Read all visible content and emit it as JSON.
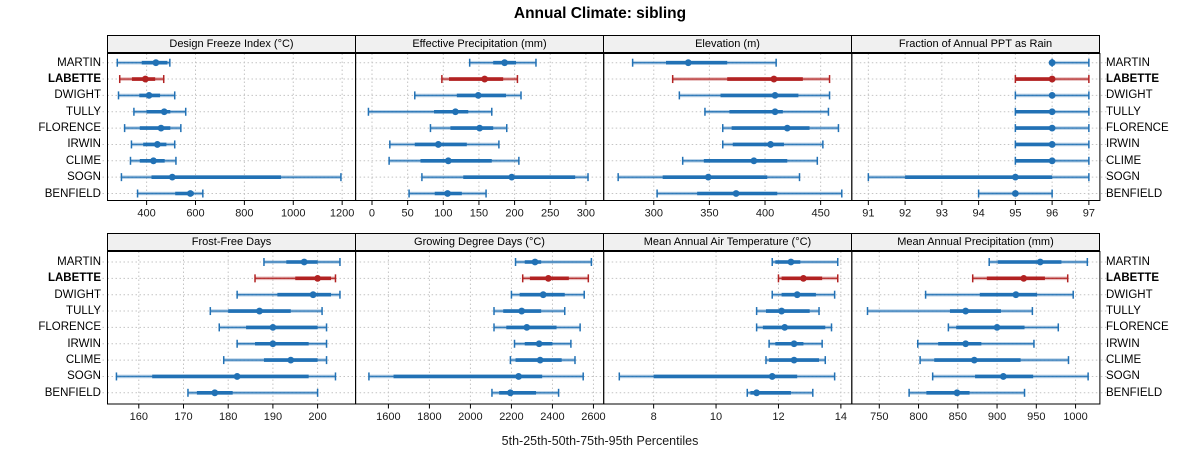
{
  "title": "Annual Climate: sibling",
  "caption": "5th-25th-50th-75th-95th Percentiles",
  "series_labels": [
    "MARTIN",
    "LABETTE",
    "DWIGHT",
    "TULLY",
    "FLORENCE",
    "IRWIN",
    "CLIME",
    "SOGN",
    "BENFIELD"
  ],
  "highlight_series": "LABETTE",
  "colors": {
    "normal": "#2171b5",
    "highlight": "#b22222",
    "gridline": "#c4c4c4",
    "panel_border": "#000000",
    "strip_bg": "#f0f0f0",
    "tick_label": "#1a1a1a"
  },
  "percentiles": [
    5,
    25,
    50,
    75,
    95
  ],
  "chart_data": [
    {
      "type": "dot-whisker",
      "title": "Design Freeze Index (°C)",
      "row": 0,
      "col": 0,
      "xlim": [
        240,
        1255
      ],
      "ticks": [
        400,
        600,
        800,
        1000,
        1200
      ],
      "series": [
        {
          "name": "MARTIN",
          "p": [
            280,
            380,
            438,
            485,
            495
          ]
        },
        {
          "name": "LABETTE",
          "p": [
            290,
            340,
            395,
            435,
            470
          ]
        },
        {
          "name": "DWIGHT",
          "p": [
            285,
            370,
            410,
            455,
            515
          ]
        },
        {
          "name": "TULLY",
          "p": [
            348,
            400,
            472,
            497,
            560
          ]
        },
        {
          "name": "FLORENCE",
          "p": [
            310,
            372,
            459,
            497,
            540
          ]
        },
        {
          "name": "IRWIN",
          "p": [
            338,
            386,
            444,
            481,
            515
          ]
        },
        {
          "name": "CLIME",
          "p": [
            334,
            372,
            428,
            474,
            520
          ]
        },
        {
          "name": "SOGN",
          "p": [
            297,
            420,
            505,
            950,
            1195
          ]
        },
        {
          "name": "BENFIELD",
          "p": [
            363,
            517,
            579,
            593,
            630
          ]
        }
      ]
    },
    {
      "type": "dot-whisker",
      "title": "Effective Precipitation (mm)",
      "row": 0,
      "col": 1,
      "xlim": [
        -23,
        325
      ],
      "ticks": [
        0,
        50,
        100,
        150,
        200,
        250,
        300
      ],
      "series": [
        {
          "name": "MARTIN",
          "p": [
            137,
            170,
            186,
            202,
            230
          ]
        },
        {
          "name": "LABETTE",
          "p": [
            98,
            108,
            158,
            184,
            204
          ]
        },
        {
          "name": "DWIGHT",
          "p": [
            60,
            119,
            149,
            188,
            209
          ]
        },
        {
          "name": "TULLY",
          "p": [
            -5,
            87,
            117,
            135,
            168
          ]
        },
        {
          "name": "FLORENCE",
          "p": [
            82,
            110,
            151,
            170,
            189
          ]
        },
        {
          "name": "IRWIN",
          "p": [
            25,
            60,
            93,
            133,
            178
          ]
        },
        {
          "name": "CLIME",
          "p": [
            24,
            68,
            107,
            168,
            206
          ]
        },
        {
          "name": "SOGN",
          "p": [
            70,
            128,
            196,
            285,
            303
          ]
        },
        {
          "name": "BENFIELD",
          "p": [
            52,
            88,
            106,
            126,
            160
          ]
        }
      ]
    },
    {
      "type": "dot-whisker",
      "title": "Elevation (m)",
      "row": 0,
      "col": 2,
      "xlim": [
        255,
        478
      ],
      "ticks": [
        300,
        350,
        400,
        450
      ],
      "series": [
        {
          "name": "MARTIN",
          "p": [
            281,
            311,
            331,
            366,
            410
          ]
        },
        {
          "name": "LABETTE",
          "p": [
            317,
            366,
            408,
            434,
            458
          ]
        },
        {
          "name": "DWIGHT",
          "p": [
            323,
            360,
            409,
            430,
            458
          ]
        },
        {
          "name": "TULLY",
          "p": [
            346,
            368,
            409,
            416,
            457
          ]
        },
        {
          "name": "FLORENCE",
          "p": [
            362,
            370,
            420,
            440,
            466
          ]
        },
        {
          "name": "IRWIN",
          "p": [
            362,
            371,
            405,
            417,
            452
          ]
        },
        {
          "name": "CLIME",
          "p": [
            326,
            345,
            390,
            420,
            447
          ]
        },
        {
          "name": "SOGN",
          "p": [
            268,
            308,
            349,
            402,
            431
          ]
        },
        {
          "name": "BENFIELD",
          "p": [
            303,
            339,
            374,
            411,
            469
          ]
        }
      ]
    },
    {
      "type": "dot-whisker",
      "title": "Fraction of Annual PPT as Rain",
      "row": 0,
      "col": 3,
      "xlim": [
        90.55,
        97.3
      ],
      "ticks": [
        91,
        92,
        93,
        94,
        95,
        96,
        97
      ],
      "series": [
        {
          "name": "MARTIN",
          "p": [
            96,
            96,
            96,
            96,
            97
          ]
        },
        {
          "name": "LABETTE",
          "p": [
            95,
            95,
            96,
            96,
            97
          ]
        },
        {
          "name": "DWIGHT",
          "p": [
            95,
            96,
            96,
            96,
            97
          ]
        },
        {
          "name": "TULLY",
          "p": [
            95,
            95,
            96,
            96,
            97
          ]
        },
        {
          "name": "FLORENCE",
          "p": [
            95,
            95,
            96,
            96,
            97
          ]
        },
        {
          "name": "IRWIN",
          "p": [
            95,
            95,
            96,
            96,
            97
          ]
        },
        {
          "name": "CLIME",
          "p": [
            95,
            95,
            96,
            96,
            97
          ]
        },
        {
          "name": "SOGN",
          "p": [
            91,
            92,
            95,
            96,
            97
          ]
        },
        {
          "name": "BENFIELD",
          "p": [
            94,
            95,
            95,
            95,
            96
          ]
        }
      ]
    },
    {
      "type": "dot-whisker",
      "title": "Frost-Free Days",
      "row": 1,
      "col": 0,
      "xlim": [
        153,
        208.5
      ],
      "ticks": [
        160,
        170,
        180,
        190,
        200
      ],
      "series": [
        {
          "name": "MARTIN",
          "p": [
            188,
            193,
            197,
            200,
            205
          ]
        },
        {
          "name": "LABETTE",
          "p": [
            186,
            195,
            200,
            203,
            204
          ]
        },
        {
          "name": "DWIGHT",
          "p": [
            182,
            191,
            199,
            203,
            205
          ]
        },
        {
          "name": "TULLY",
          "p": [
            176,
            180,
            187,
            194,
            201
          ]
        },
        {
          "name": "FLORENCE",
          "p": [
            178,
            184,
            190,
            200,
            202
          ]
        },
        {
          "name": "IRWIN",
          "p": [
            182,
            186,
            190,
            198,
            202
          ]
        },
        {
          "name": "CLIME",
          "p": [
            179,
            188,
            194,
            200,
            202
          ]
        },
        {
          "name": "SOGN",
          "p": [
            155,
            163,
            182,
            198,
            204
          ]
        },
        {
          "name": "BENFIELD",
          "p": [
            171,
            173,
            177,
            181,
            200
          ]
        }
      ]
    },
    {
      "type": "dot-whisker",
      "title": "Growing Degree Days (°C)",
      "row": 1,
      "col": 1,
      "xlim": [
        1440,
        2650
      ],
      "ticks": [
        1600,
        1800,
        2000,
        2200,
        2400,
        2600
      ],
      "series": [
        {
          "name": "MARTIN",
          "p": [
            2220,
            2265,
            2315,
            2345,
            2590
          ]
        },
        {
          "name": "LABETTE",
          "p": [
            2255,
            2290,
            2380,
            2480,
            2575
          ]
        },
        {
          "name": "DWIGHT",
          "p": [
            2200,
            2240,
            2355,
            2460,
            2555
          ]
        },
        {
          "name": "TULLY",
          "p": [
            2115,
            2160,
            2250,
            2345,
            2460
          ]
        },
        {
          "name": "FLORENCE",
          "p": [
            2115,
            2175,
            2275,
            2420,
            2535
          ]
        },
        {
          "name": "IRWIN",
          "p": [
            2215,
            2265,
            2335,
            2400,
            2490
          ]
        },
        {
          "name": "CLIME",
          "p": [
            2195,
            2220,
            2340,
            2445,
            2510
          ]
        },
        {
          "name": "SOGN",
          "p": [
            1505,
            1625,
            2235,
            2350,
            2550
          ]
        },
        {
          "name": "BENFIELD",
          "p": [
            2105,
            2140,
            2195,
            2320,
            2430
          ]
        }
      ]
    },
    {
      "type": "dot-whisker",
      "title": "Mean Annual Air Temperature (°C)",
      "row": 1,
      "col": 2,
      "xlim": [
        6.4,
        14.35
      ],
      "ticks": [
        8,
        10,
        12,
        14
      ],
      "series": [
        {
          "name": "MARTIN",
          "p": [
            11.8,
            11.9,
            12.4,
            12.7,
            13.9
          ]
        },
        {
          "name": "LABETTE",
          "p": [
            12.0,
            12.1,
            12.8,
            13.4,
            13.9
          ]
        },
        {
          "name": "DWIGHT",
          "p": [
            11.8,
            12.1,
            12.6,
            13.2,
            13.8
          ]
        },
        {
          "name": "TULLY",
          "p": [
            11.3,
            11.6,
            12.1,
            13.0,
            13.3
          ]
        },
        {
          "name": "FLORENCE",
          "p": [
            11.3,
            11.5,
            12.2,
            13.5,
            13.7
          ]
        },
        {
          "name": "IRWIN",
          "p": [
            11.7,
            11.9,
            12.5,
            12.8,
            13.4
          ]
        },
        {
          "name": "CLIME",
          "p": [
            11.6,
            11.7,
            12.5,
            13.3,
            13.5
          ]
        },
        {
          "name": "SOGN",
          "p": [
            6.9,
            8.0,
            11.8,
            12.6,
            13.8
          ]
        },
        {
          "name": "BENFIELD",
          "p": [
            11.0,
            11.1,
            11.3,
            12.4,
            13.1
          ]
        }
      ]
    },
    {
      "type": "dot-whisker",
      "title": "Mean Annual Precipitation (mm)",
      "row": 1,
      "col": 3,
      "xlim": [
        715,
        1031
      ],
      "ticks": [
        750,
        800,
        850,
        900,
        950,
        1000
      ],
      "series": [
        {
          "name": "MARTIN",
          "p": [
            890,
            901,
            955,
            982,
            1015
          ]
        },
        {
          "name": "LABETTE",
          "p": [
            869,
            887,
            934,
            961,
            990
          ]
        },
        {
          "name": "DWIGHT",
          "p": [
            809,
            878,
            924,
            951,
            997
          ]
        },
        {
          "name": "TULLY",
          "p": [
            735,
            840,
            860,
            905,
            945
          ]
        },
        {
          "name": "FLORENCE",
          "p": [
            838,
            848,
            900,
            935,
            978
          ]
        },
        {
          "name": "IRWIN",
          "p": [
            799,
            825,
            860,
            880,
            947
          ]
        },
        {
          "name": "CLIME",
          "p": [
            802,
            820,
            871,
            930,
            991
          ]
        },
        {
          "name": "SOGN",
          "p": [
            818,
            872,
            908,
            946,
            1016
          ]
        },
        {
          "name": "BENFIELD",
          "p": [
            788,
            810,
            849,
            865,
            935
          ]
        }
      ]
    }
  ]
}
